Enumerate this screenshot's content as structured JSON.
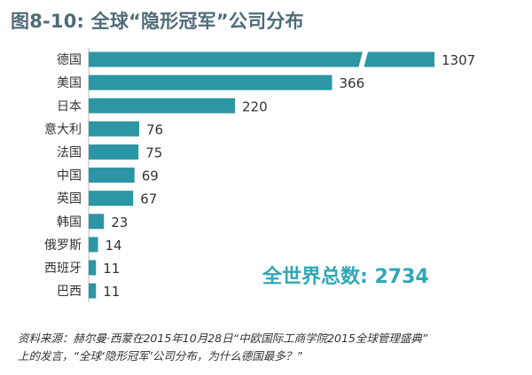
{
  "title": "图8-10: 全球“隐形冠军”公司分布",
  "total_label": "全世界总数: 2734",
  "source": {
    "line1": "资料来源：赫尔曼·西蒙在2015年10月28日“中欧国际工商学院2015全球管理盛典”",
    "line2": "上的发言，“全球‘隐形冠军’公司分布，为什么德国最多？”"
  },
  "colors": {
    "bar": "#2c96a4",
    "title": "#4f6b78",
    "total": "#2fa7b6"
  },
  "chart_data": {
    "type": "bar",
    "orientation": "horizontal",
    "axis_break": true,
    "categories": [
      "德国",
      "美国",
      "日本",
      "意大利",
      "法国",
      "中国",
      "英国",
      "韩国",
      "俄罗斯",
      "西班牙",
      "巴西"
    ],
    "values": [
      1307,
      366,
      220,
      76,
      75,
      69,
      67,
      23,
      14,
      11,
      11
    ],
    "title": "图8-10: 全球“隐形冠军”公司分布",
    "xlabel": "",
    "ylabel": ""
  }
}
